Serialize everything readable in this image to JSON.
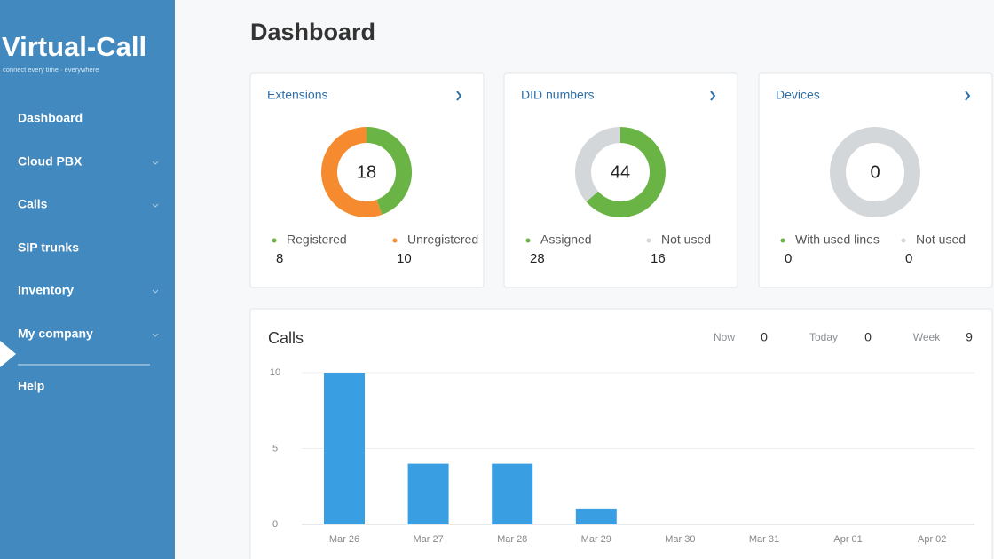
{
  "sidebar": {
    "logo": "Virtual-Call",
    "tagline": "connect every time · everywhere",
    "menu": [
      {
        "label": "Dashboard",
        "submenu": false
      },
      {
        "label": "Cloud PBX",
        "submenu": true
      },
      {
        "label": "Calls",
        "submenu": true
      },
      {
        "label": "SIP trunks",
        "submenu": false
      },
      {
        "label": "Inventory",
        "submenu": true
      },
      {
        "label": "My company",
        "submenu": true
      },
      {
        "label": "Help",
        "submenu": false
      }
    ]
  },
  "page_title": "Dashboard",
  "cards": [
    {
      "title": "Extensions",
      "total": 18,
      "segments": [
        {
          "name": "Registered",
          "value": 8,
          "color": "#6ab446"
        },
        {
          "name": "Unregistered",
          "value": 10,
          "color": "#f58a2e"
        }
      ]
    },
    {
      "title": "DID numbers",
      "total": 44,
      "segments": [
        {
          "name": "Assigned",
          "value": 28,
          "color": "#6ab446"
        },
        {
          "name": "Not used",
          "value": 16,
          "color": "#d4d7da"
        }
      ]
    },
    {
      "title": "Devices",
      "total": 0,
      "segments": [
        {
          "name": "With used lines",
          "value": 0,
          "color": "#6ab446"
        },
        {
          "name": "Not used",
          "value": 0,
          "color": "#d4d7da"
        }
      ]
    }
  ],
  "calls": {
    "title": "Calls",
    "stats": [
      {
        "label": "Now",
        "value": 0
      },
      {
        "label": "Today",
        "value": 0
      },
      {
        "label": "Week",
        "value": 9
      }
    ],
    "chart": {
      "type": "bar",
      "categories": [
        "Mar 26",
        "Mar 27",
        "Mar 28",
        "Mar 29",
        "Mar 30",
        "Mar 31",
        "Apr 01",
        "Apr 02"
      ],
      "values": [
        10,
        4,
        4,
        1,
        0,
        0,
        0,
        0
      ],
      "color": "#3a9fe2",
      "ylim": [
        0,
        10
      ],
      "yticks": [
        0,
        5,
        10
      ],
      "grid": true
    }
  }
}
